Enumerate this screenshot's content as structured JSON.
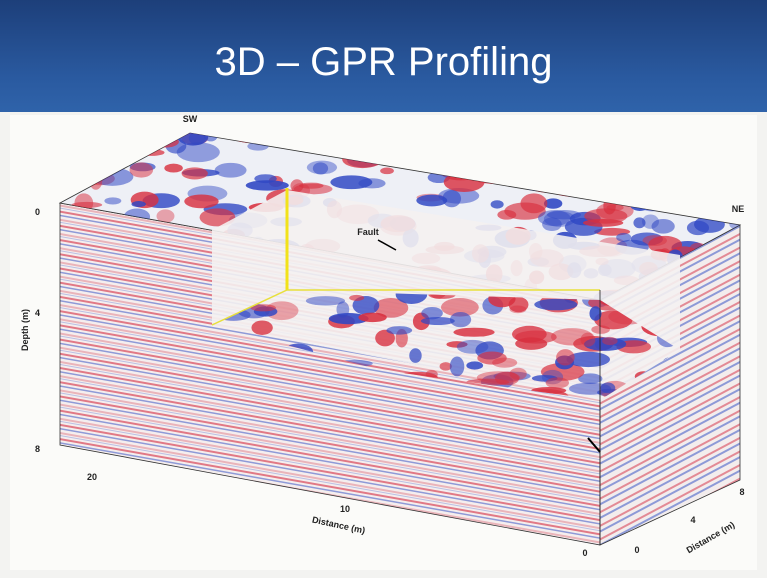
{
  "header": {
    "title": "3D – GPR Profiling"
  },
  "figure": {
    "labels": {
      "sw": "SW",
      "ne": "NE",
      "fault": "Fault",
      "depth_axis": "Depth (m)",
      "distance_axis_front": "Distance (m)",
      "distance_axis_side": "Distance (m)"
    },
    "depth_ticks": [
      "0",
      "4",
      "8"
    ],
    "front_distance_ticks": [
      "20",
      "10",
      "0"
    ],
    "side_distance_ticks": [
      "0",
      "4",
      "8"
    ]
  }
}
